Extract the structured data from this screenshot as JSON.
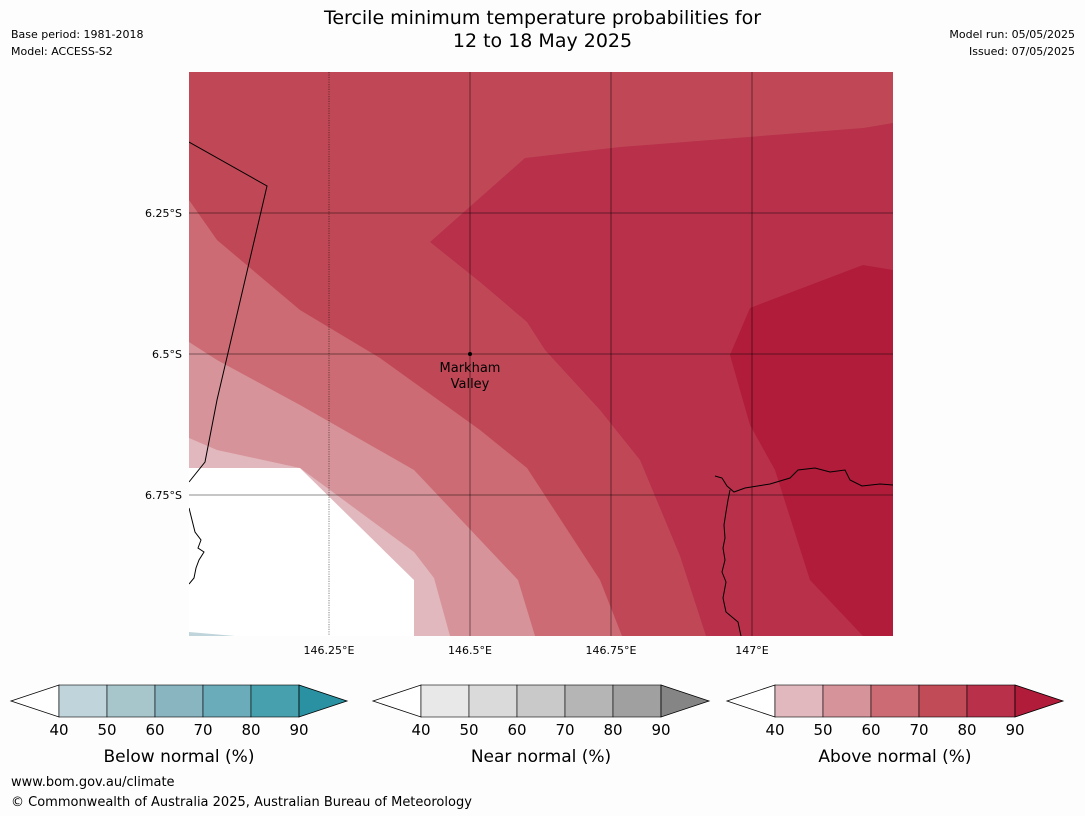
{
  "header": {
    "base_period": "Base period: 1981-2018",
    "model": "Model: ACCESS-S2",
    "title_line1": "Tercile minimum temperature probabilities for",
    "title_line2": "12 to 18 May 2025",
    "model_run": "Model run: 05/05/2025",
    "issued": "Issued: 07/05/2025"
  },
  "map": {
    "lat_labels": [
      "6.25°S",
      "6.5°S",
      "6.75°S"
    ],
    "lon_labels": [
      "146.25°E",
      "146.5°E",
      "146.75°E",
      "147°E"
    ],
    "place": {
      "name_line1": "Markham",
      "name_line2": "Valley"
    }
  },
  "legends": [
    {
      "title": "Below normal (%)",
      "ticks": [
        "40",
        "50",
        "60",
        "70",
        "80",
        "90"
      ],
      "colors": [
        "#ffffff",
        "#bfd5db",
        "#a6c6cb",
        "#89b5c1",
        "#6bacba",
        "#47a0ae",
        "#2a91a2"
      ]
    },
    {
      "title": "Near normal (%)",
      "ticks": [
        "40",
        "50",
        "60",
        "70",
        "80",
        "90"
      ],
      "colors": [
        "#ffffff",
        "#e8e8e8",
        "#dadada",
        "#c9c9c9",
        "#b5b5b5",
        "#a0a0a0",
        "#858585"
      ]
    },
    {
      "title": "Above normal (%)",
      "ticks": [
        "40",
        "50",
        "60",
        "70",
        "80",
        "90"
      ],
      "colors": [
        "#ffffff",
        "#e1b8bd",
        "#d7939a",
        "#cc6b73",
        "#c14b56",
        "#b8304a",
        "#b01c3a"
      ]
    }
  ],
  "footer": {
    "url": "www.bom.gov.au/climate",
    "copyright": "© Commonwealth of Australia 2025, Australian Bureau of Meteorology"
  }
}
